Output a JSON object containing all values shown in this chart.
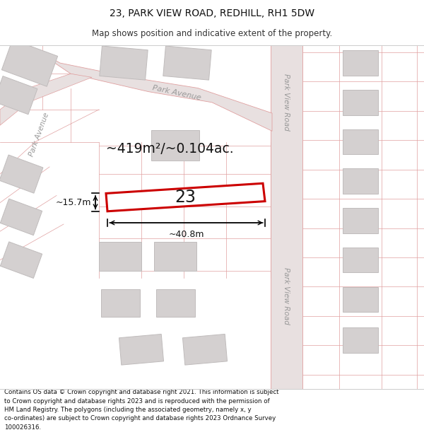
{
  "title": "23, PARK VIEW ROAD, REDHILL, RH1 5DW",
  "subtitle": "Map shows position and indicative extent of the property.",
  "footer": "Contains OS data © Crown copyright and database right 2021. This information is subject\nto Crown copyright and database rights 2023 and is reproduced with the permission of\nHM Land Registry. The polygons (including the associated geometry, namely x, y\nco-ordinates) are subject to Crown copyright and database rights 2023 Ordnance Survey\n100026316.",
  "map_bg": "#f2f0f0",
  "road_fill": "#e8e0e0",
  "road_line": "#e0a0a0",
  "building_fill": "#d4d0d0",
  "building_edge": "#c0bcbc",
  "highlight_color": "#cc0000",
  "area_text": "~419m²/~0.104ac.",
  "number_text": "23",
  "dim_width": "~40.8m",
  "dim_height": "~15.7m",
  "label_park_ave_top": "Park Avenue",
  "label_park_ave_left": "Park Avenue",
  "label_pvr_top": "Park View Road",
  "label_pvr_bottom": "Park View Road"
}
